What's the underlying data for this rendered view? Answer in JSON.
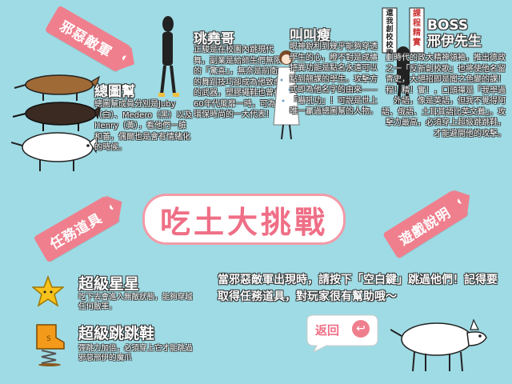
{
  "tags": {
    "villains": "邪惡敵軍",
    "items": "任務道具",
    "instructions": "遊戲說明"
  },
  "title": "吃土大挑戰",
  "characters": {
    "rats": {
      "name": "總圖幫",
      "desc": "總圖幫成員分別是Juby（白）、Medero（黑）以及Henry（黃），看他們一臉和善，偶爾也是會有情緒化的時候。"
    },
    "yaoge": {
      "name": "珧堯哥",
      "desc": "正駿是在校園內跳現代舞，副業是給師生們無限的「驚喜」，無奈是前衛的舞蹈技巧卻成為他致命的武器，塑膠繩鞋也曾在60年代風靡一時，可為環保時尚的一大代表！"
    },
    "jiaojiao": {
      "name": "叫叫瘦",
      "desc": "眼神銳利到幾乎能夠穿透學生的心，瞪不對是成績特異功能是點名永遠可以點到翹課的學生。攻擊方式即為他名字的由來——「嚇吼功」！可說是世上唯一贏過總圖幫的人物。"
    },
    "boss": {
      "name": "BOSS\n邢伊先生",
      "desc": "劃時代的政大精神領袖，推出德政之一「反新創校歌」也將使他名留青史，大絕招即是聞之色變的課！程！精！實！，口頭禪是「我學過外語，像是英語，但我不覺得阿語、俄語、土耳其語比英文難」。攻擊力最高，必須穿上超級跳跳鞋，才能避開他的攻擊。",
      "sign1": "課程精實",
      "sign2": "還我創校校歌"
    }
  },
  "instructions_text": "當邪惡敵軍出現時，請按下「空白鍵」跳過他們！記得要取得任務道具，對玩家很有幫助哦～",
  "items": [
    {
      "name": "超級星星",
      "desc": "吃下去會進入無敵狀態，能夠穿越任何敵軍。",
      "icon": "star-icon"
    },
    {
      "name": "超級跳跳鞋",
      "desc": "彈跳力加倍，必須穿上它才能跳過邪惡邢伊的魔爪",
      "icon": "spring-shoe-icon"
    }
  ],
  "back_label": "返回",
  "colors": {
    "background": "#9fdbe4",
    "tag": "#ef7f8d",
    "title_text": "#ef6f86",
    "title_border": "#f39aa7"
  }
}
